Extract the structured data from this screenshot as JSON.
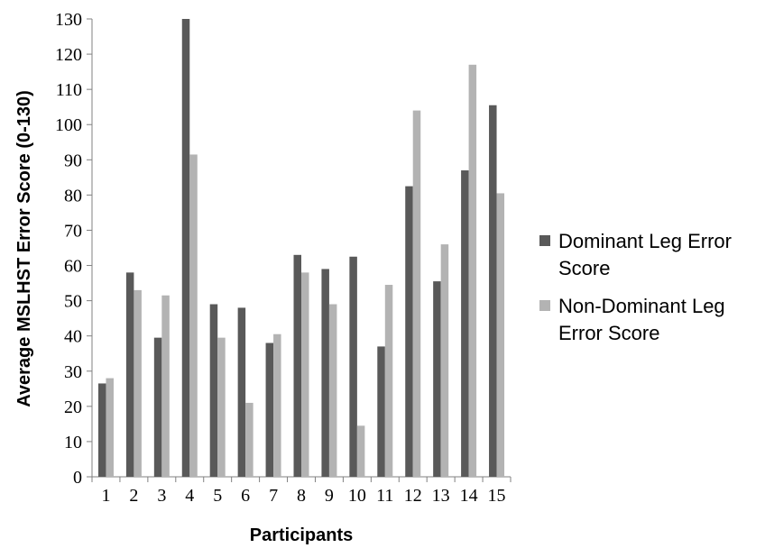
{
  "chart_data": {
    "type": "bar",
    "title": "",
    "xlabel": "Participants",
    "ylabel": "Average MSLHST Error Score (0-130)",
    "ylim": [
      0,
      130
    ],
    "yticks": [
      0,
      10,
      20,
      30,
      40,
      50,
      60,
      70,
      80,
      90,
      100,
      110,
      120,
      130
    ],
    "categories": [
      "1",
      "2",
      "3",
      "4",
      "5",
      "6",
      "7",
      "8",
      "9",
      "10",
      "11",
      "12",
      "13",
      "14",
      "15"
    ],
    "series": [
      {
        "name": "Dominant Leg Error Score",
        "name_lines": [
          "Dominant Leg Error",
          "Score"
        ],
        "color": "#595959",
        "values": [
          26.5,
          58,
          39.5,
          130,
          49,
          48,
          38,
          63,
          59,
          62.5,
          37,
          82.5,
          55.5,
          87,
          105.5
        ]
      },
      {
        "name": "Non-Dominant Leg Error Score",
        "name_lines": [
          "Non-Dominant Leg",
          "Error Score"
        ],
        "color": "#b3b3b3",
        "values": [
          28,
          53,
          51.5,
          91.5,
          39.5,
          21,
          40.5,
          58,
          49,
          14.5,
          54.5,
          104,
          66,
          117,
          80.5
        ]
      }
    ],
    "grid": false,
    "legend_position": "right"
  }
}
